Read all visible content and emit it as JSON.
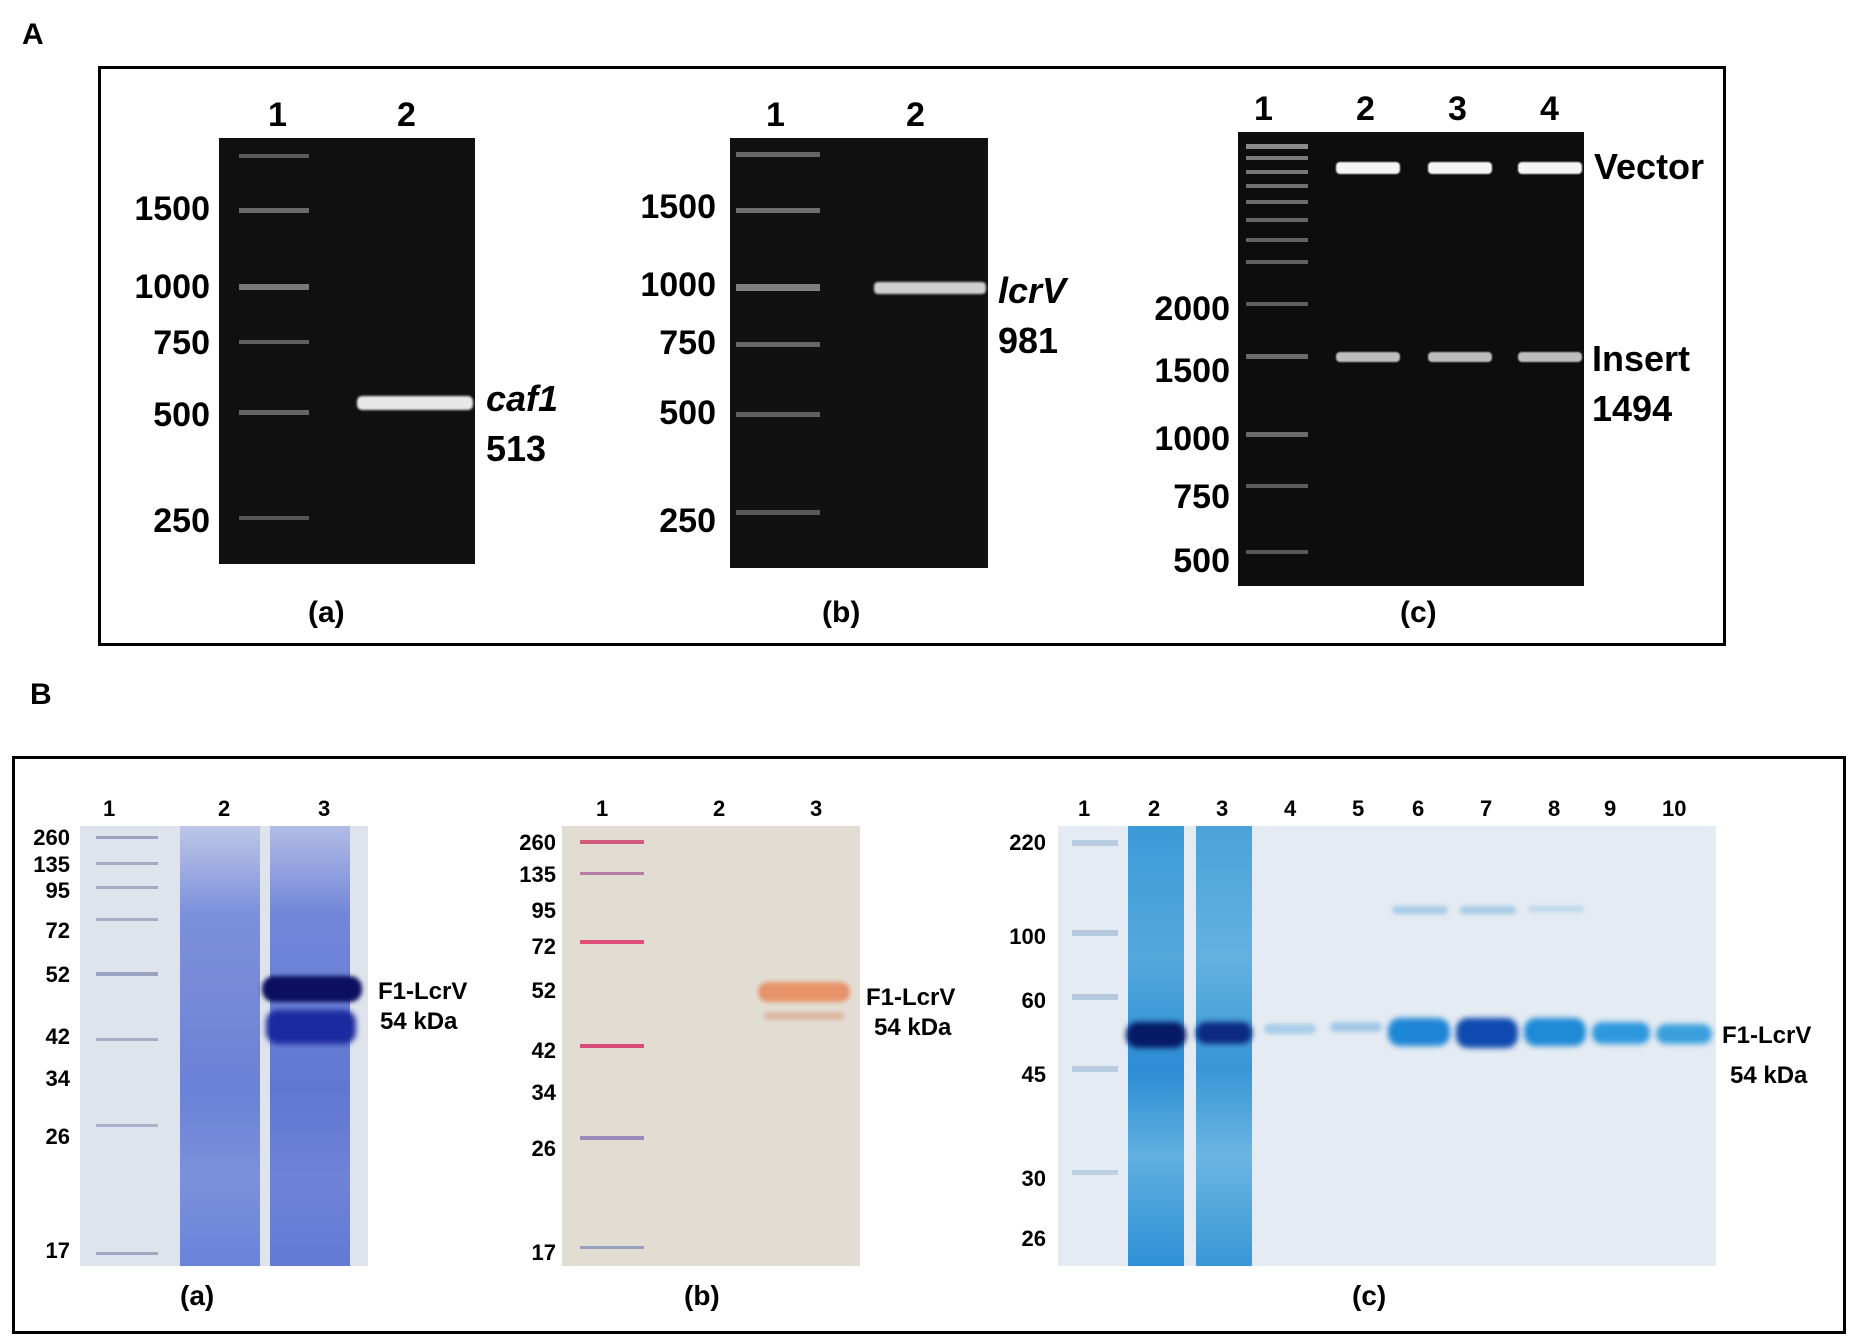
{
  "panel_A": {
    "letter": "A",
    "gel_a": {
      "caption": "(a)",
      "lanes": [
        "1",
        "2"
      ],
      "ladder": [
        "1500",
        "1000",
        "750",
        "500",
        "250"
      ],
      "product_name": "caf1",
      "product_size": "513"
    },
    "gel_b": {
      "caption": "(b)",
      "lanes": [
        "1",
        "2"
      ],
      "ladder": [
        "1500",
        "1000",
        "750",
        "500",
        "250"
      ],
      "product_name": "lcrV",
      "product_size": "981"
    },
    "gel_c": {
      "caption": "(c)",
      "lanes": [
        "1",
        "2",
        "3",
        "4"
      ],
      "ladder": [
        "2000",
        "1500",
        "1000",
        "750",
        "500"
      ],
      "vector_label": "Vector",
      "insert_label": "Insert",
      "insert_size": "1494"
    }
  },
  "panel_B": {
    "letter": "B",
    "gel_a": {
      "caption": "(a)",
      "lanes": [
        "1",
        "2",
        "3"
      ],
      "ladder": [
        "260",
        "135",
        "95",
        "72",
        "52",
        "42",
        "34",
        "26",
        "17"
      ],
      "protein_name": "F1-LcrV",
      "protein_size": "54 kDa"
    },
    "gel_b": {
      "caption": "(b)",
      "lanes": [
        "1",
        "2",
        "3"
      ],
      "ladder": [
        "260",
        "135",
        "95",
        "72",
        "52",
        "42",
        "34",
        "26",
        "17"
      ],
      "protein_name": "F1-LcrV",
      "protein_size": "54 kDa"
    },
    "gel_c": {
      "caption": "(c)",
      "lanes": [
        "1",
        "2",
        "3",
        "4",
        "5",
        "6",
        "7",
        "8",
        "9",
        "10"
      ],
      "ladder": [
        "220",
        "100",
        "60",
        "45",
        "30",
        "26"
      ],
      "protein_name": "F1-LcrV",
      "protein_size": "54 kDa"
    }
  }
}
